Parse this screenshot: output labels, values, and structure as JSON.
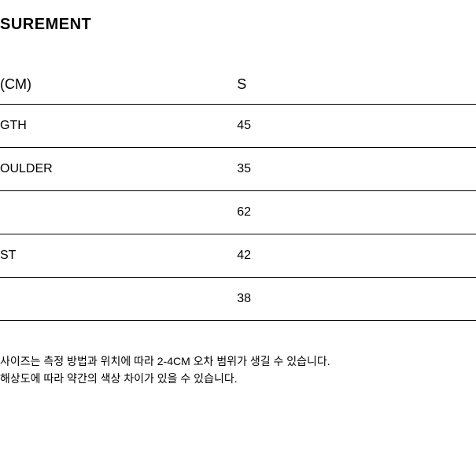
{
  "title": "SUREMENT",
  "table": {
    "header": {
      "unit_label": "(CM)",
      "size_label": "S"
    },
    "rows": [
      {
        "label": "GTH",
        "value": "45"
      },
      {
        "label": "OULDER",
        "value": "35"
      },
      {
        "label": "",
        "value": "62"
      },
      {
        "label": "ST",
        "value": "42"
      },
      {
        "label": "",
        "value": "38"
      }
    ]
  },
  "footer": {
    "note1": "사이즈는 측정 방법과 위치에 따라 2-4CM 오차 범위가 생길 수 있습니다.",
    "note2": "해상도에 따라 약간의 색상 차이가 있을 수 있습니다."
  },
  "styling": {
    "background_color": "#ffffff",
    "text_color": "#000000",
    "border_color": "#000000",
    "title_fontsize": 20,
    "header_fontsize": 18,
    "cell_fontsize": 16,
    "footer_fontsize": 14
  }
}
